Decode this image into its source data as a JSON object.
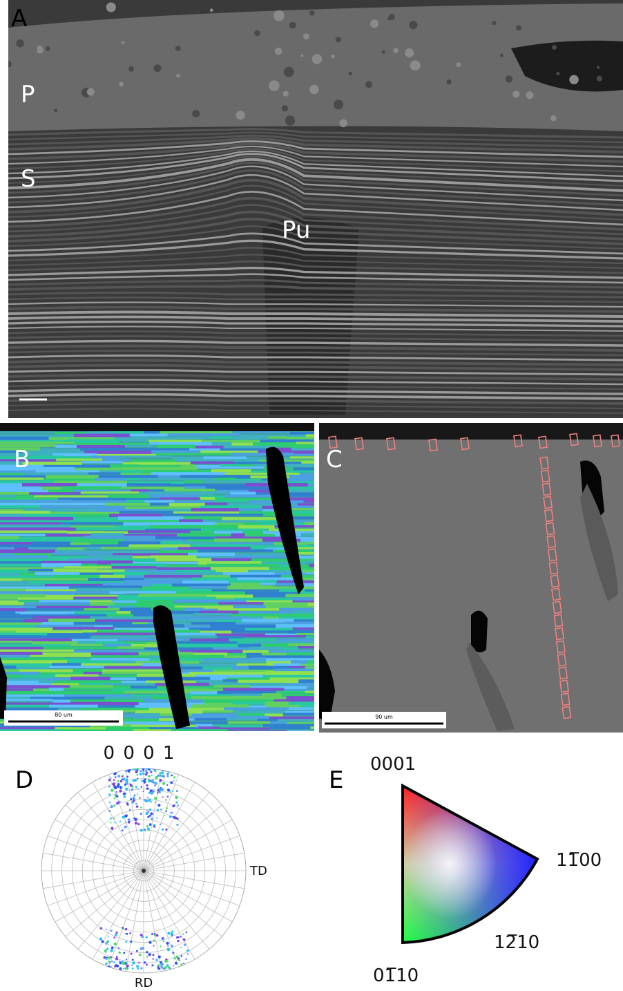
{
  "panels": {
    "a": {
      "label": "A",
      "annotations": [
        "P",
        "S",
        "Pu"
      ]
    },
    "b": {
      "label": "B",
      "scale_bar": "80 um"
    },
    "c": {
      "label": "C",
      "scale_bar": "90 um"
    },
    "d": {
      "label": "D",
      "pole": "0 0 0 1",
      "axis_right": "TD",
      "axis_bottom": "RD"
    },
    "e": {
      "label": "E",
      "corners": [
        "0001",
        "11̅00",
        "12̅10",
        "01̅10"
      ]
    }
  }
}
